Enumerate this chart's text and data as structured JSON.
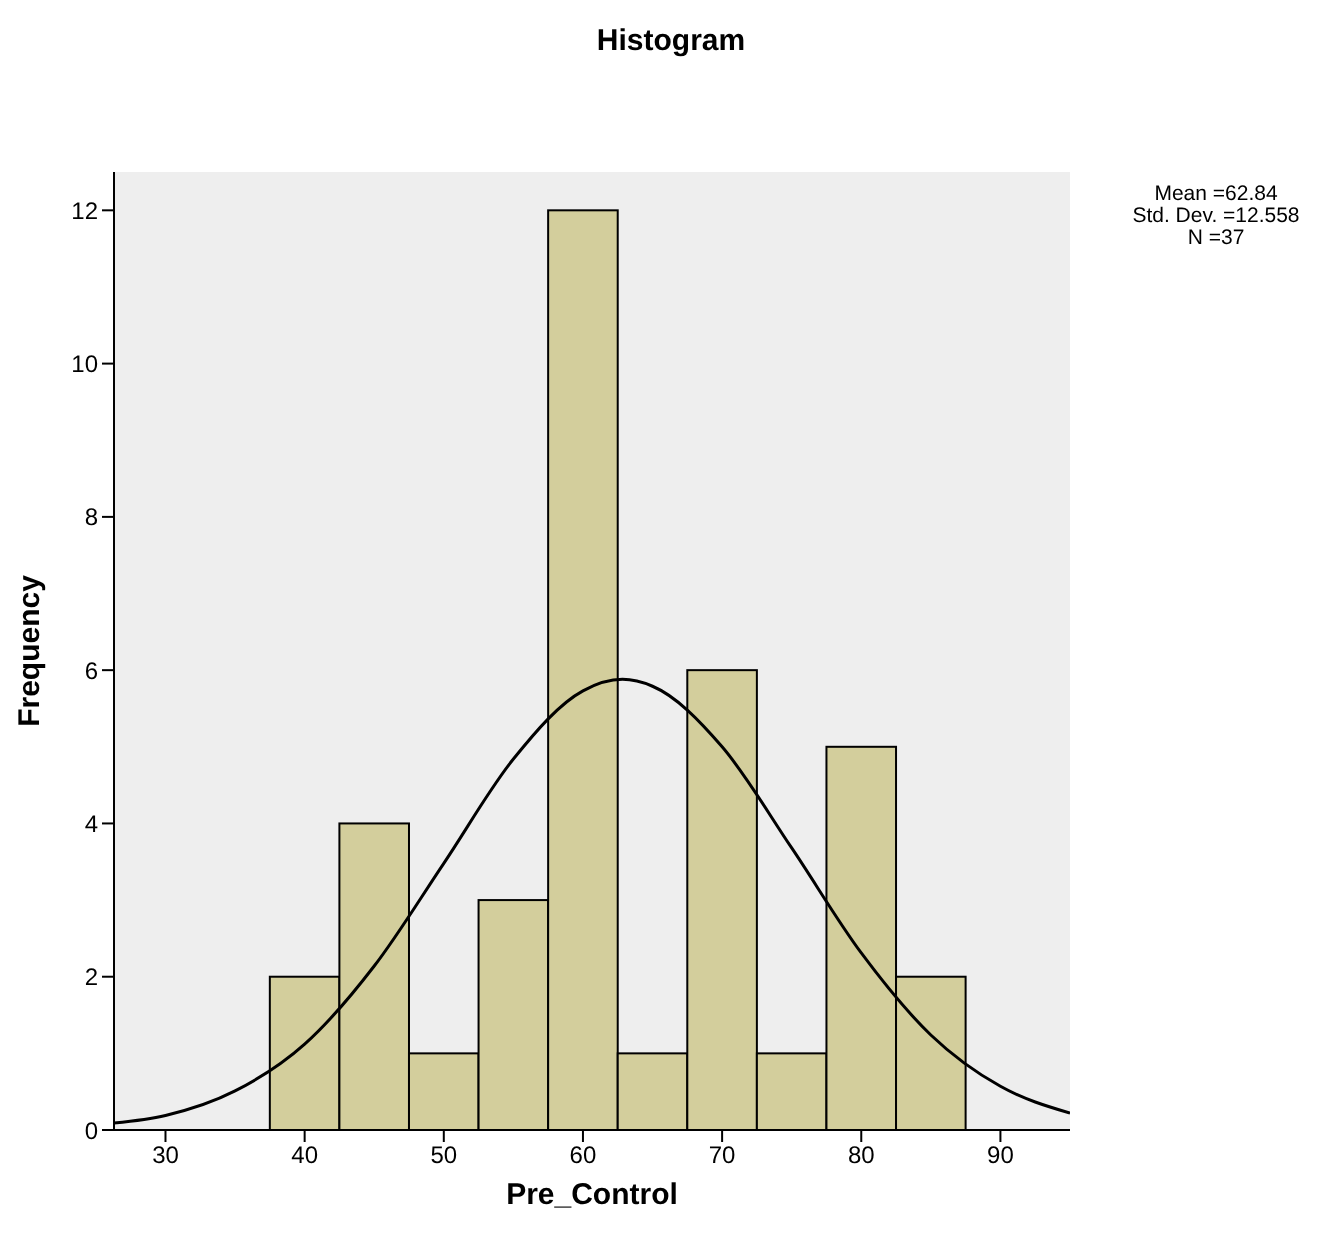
{
  "chart_data": {
    "type": "histogram",
    "title": "Histogram",
    "xlabel": "Pre_Control",
    "ylabel": "Frequency",
    "bins": [
      37.5,
      42.5,
      47.5,
      52.5,
      57.5,
      62.5,
      67.5,
      72.5,
      77.5,
      82.5,
      87.5
    ],
    "values": [
      2,
      4,
      1,
      3,
      12,
      1,
      6,
      1,
      5,
      2
    ],
    "color": "#d3ce9c",
    "series": [
      {
        "type": "line",
        "color": "#000000",
        "x": [
          26.3,
          30,
          35,
          40,
          45,
          50,
          55,
          60,
          62.84,
          65,
          70,
          75,
          80,
          85,
          90,
          95
        ],
        "values": [
          0.09,
          0.19,
          0.51,
          1.12,
          2.14,
          3.48,
          4.84,
          5.73,
          5.88,
          5.79,
          5.0,
          3.68,
          2.31,
          1.24,
          0.57,
          0.22
        ]
      }
    ],
    "xlim": [
      26.3,
      95
    ],
    "xticks": [
      30,
      40,
      50,
      60,
      70,
      80,
      90
    ],
    "ylim": [
      0,
      12.5
    ],
    "yticks": [
      0,
      2,
      4,
      6,
      8,
      10,
      12
    ],
    "grid": false,
    "legend": false,
    "marker": "none",
    "annotations": [
      "Mean =62.84",
      "Std. Dev. =12.558",
      "N =37"
    ]
  }
}
